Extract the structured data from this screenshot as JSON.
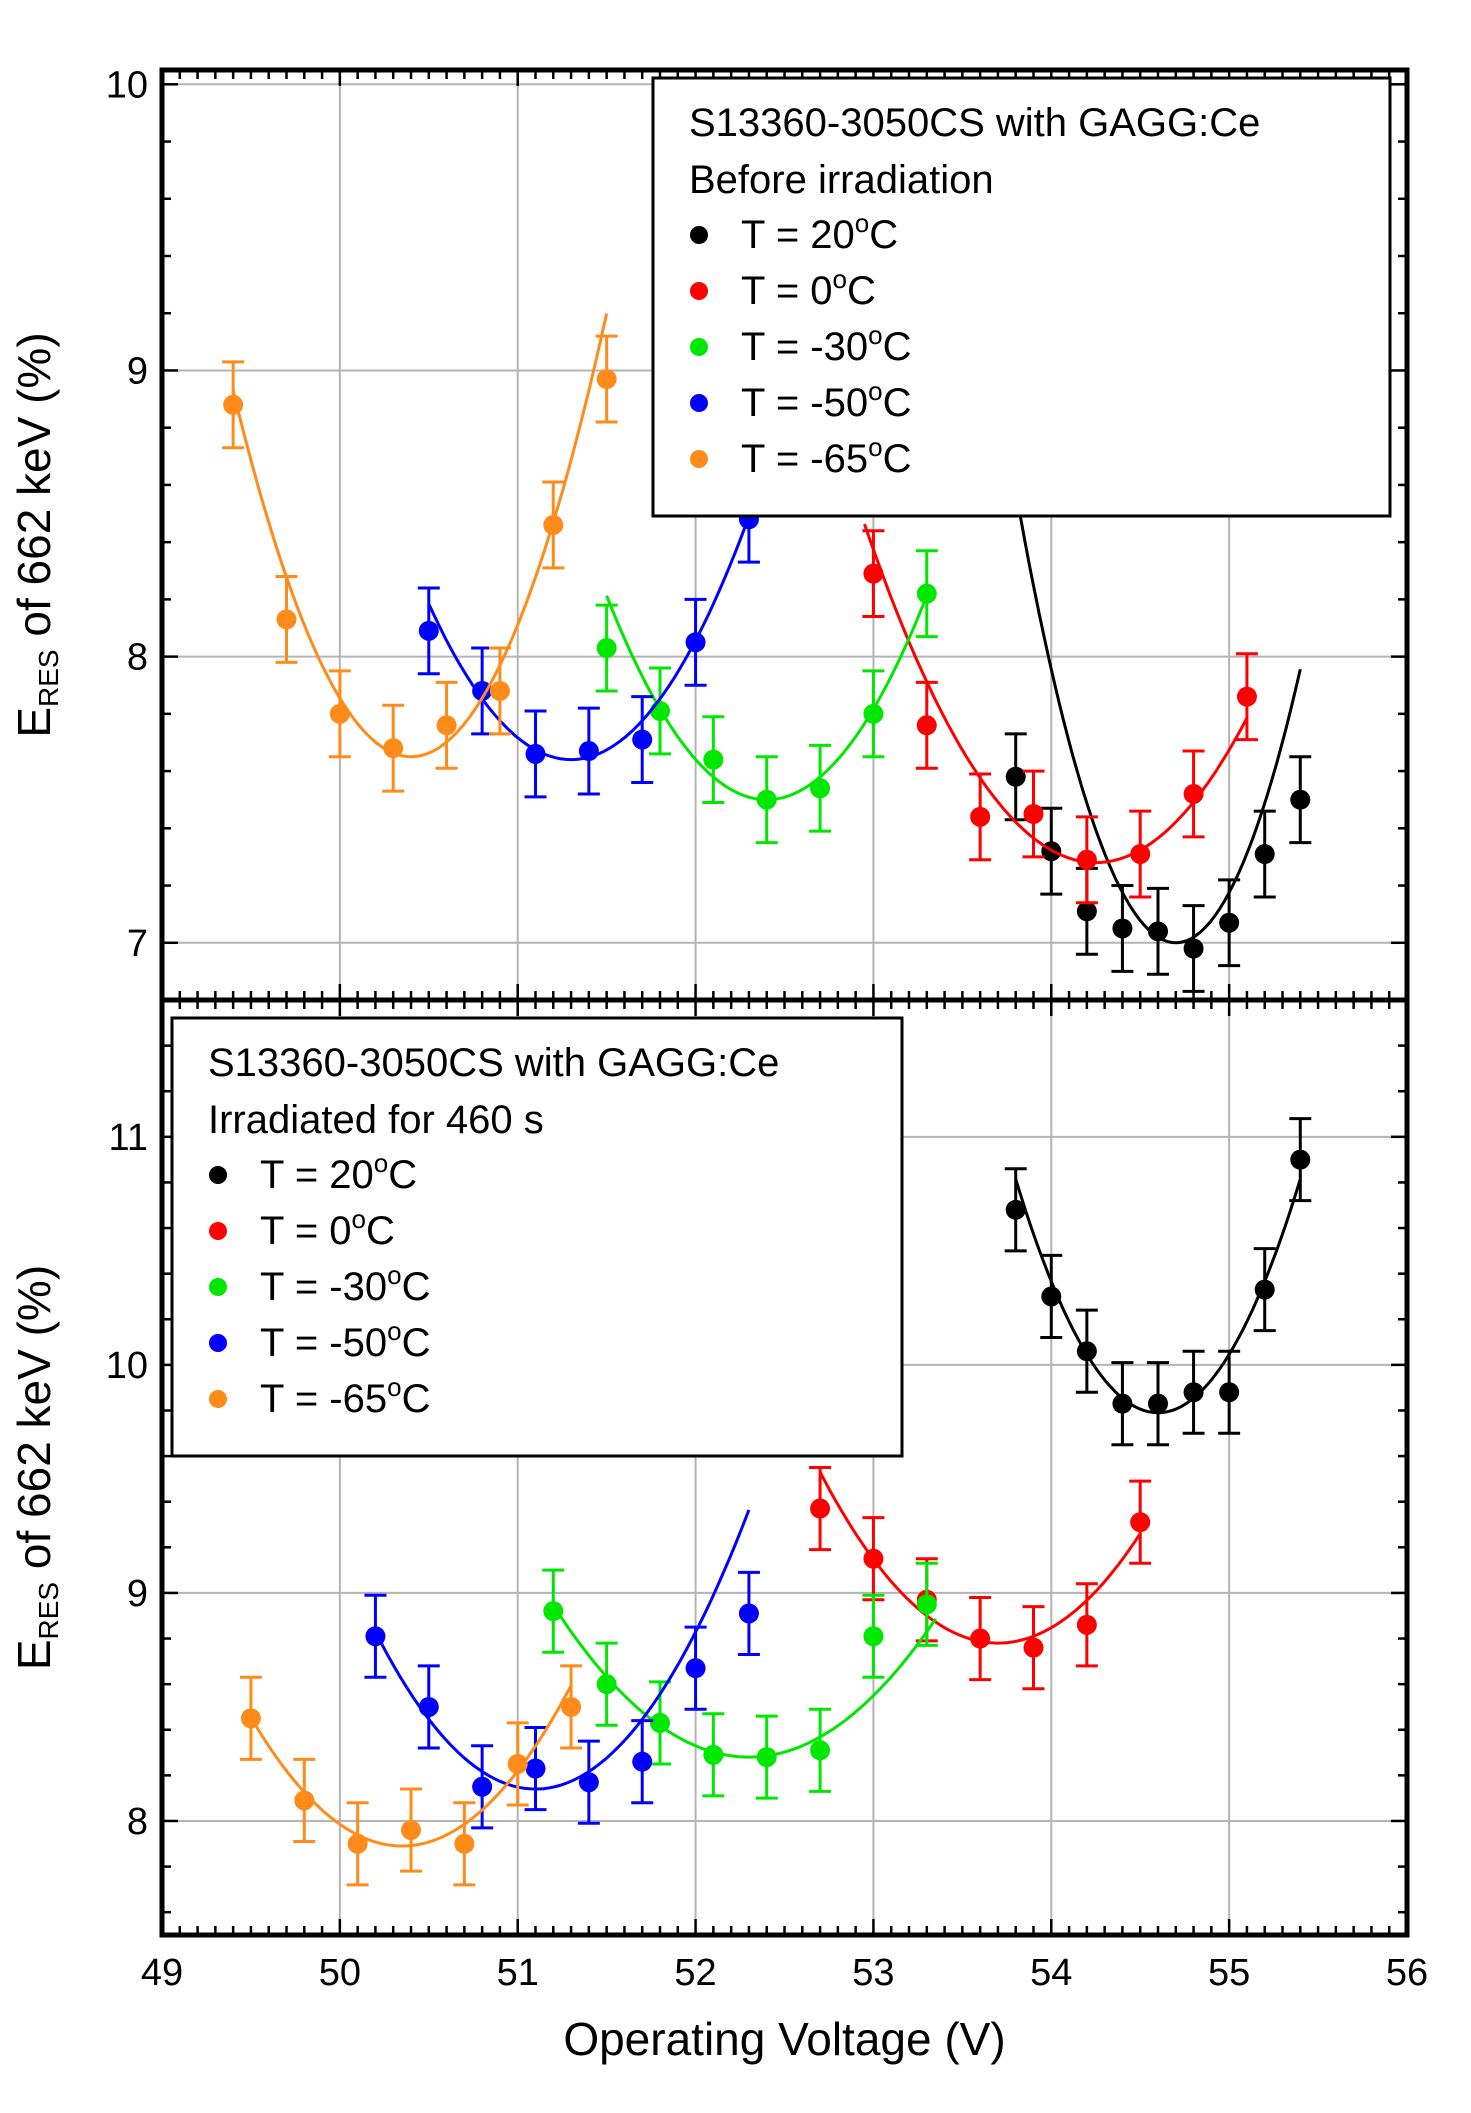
{
  "chart_data": [
    {
      "type": "scatter",
      "panel": "top",
      "title": "",
      "xlabel": "",
      "ylabel": "E",
      "ylabel_sub": "RES",
      "ylabel_rest": " of 662 keV (%)",
      "xlim": [
        49,
        56
      ],
      "ylim": [
        6.8,
        10.05
      ],
      "yticks": [
        "7",
        "8",
        "9",
        "10"
      ],
      "ytick_values": [
        7,
        8,
        9,
        10
      ],
      "grid": true,
      "legend_position": "top-right",
      "legend_title": [
        "S13360-3050CS with GAGG:Ce",
        "Before irradiation"
      ],
      "error_bar": 0.15,
      "series": [
        {
          "name": "T = 20",
          "name_sup": "o",
          "name_tail": "C",
          "color": "#000000",
          "x": [
            53.8,
            54.0,
            54.2,
            54.4,
            54.6,
            54.8,
            55.0,
            55.2,
            55.4
          ],
          "y": [
            7.58,
            7.32,
            7.11,
            7.05,
            7.04,
            6.98,
            7.07,
            7.31,
            7.5
          ],
          "fit": {
            "vertex_x": 54.7,
            "vertex_y": 7.0,
            "a": 1.95,
            "x_range": [
              53.8,
              55.4
            ]
          }
        },
        {
          "name": "T = 0",
          "name_sup": "o",
          "name_tail": "C",
          "color": "#ff0000",
          "x": [
            53.0,
            53.3,
            53.6,
            53.9,
            54.2,
            54.5,
            54.8,
            55.1
          ],
          "y": [
            8.29,
            7.76,
            7.44,
            7.45,
            7.29,
            7.31,
            7.52,
            7.86
          ],
          "fit": {
            "vertex_x": 54.25,
            "vertex_y": 7.28,
            "a": 0.7,
            "x_range": [
              52.95,
              55.1
            ]
          }
        },
        {
          "name": "T = -30",
          "name_sup": "o",
          "name_tail": "C",
          "color": "#00e800",
          "x": [
            51.5,
            51.8,
            52.1,
            52.4,
            52.7,
            53.0,
            53.3
          ],
          "y": [
            8.03,
            7.81,
            7.64,
            7.5,
            7.54,
            7.8,
            8.22
          ],
          "fit": {
            "vertex_x": 52.4,
            "vertex_y": 7.5,
            "a": 0.88,
            "x_range": [
              51.5,
              53.3
            ]
          }
        },
        {
          "name": "T = -50",
          "name_sup": "o",
          "name_tail": "C",
          "color": "#0000ff",
          "x": [
            50.5,
            50.8,
            51.1,
            51.4,
            51.7,
            52.0,
            52.3
          ],
          "y": [
            8.09,
            7.88,
            7.66,
            7.67,
            7.71,
            8.05,
            8.48
          ],
          "fit": {
            "vertex_x": 51.3,
            "vertex_y": 7.64,
            "a": 0.85,
            "x_range": [
              50.5,
              52.35
            ]
          }
        },
        {
          "name": "T = -65",
          "name_sup": "o",
          "name_tail": "C",
          "color": "#ff8c1a",
          "x": [
            49.4,
            49.7,
            50.0,
            50.3,
            50.6,
            50.9,
            51.2,
            51.5
          ],
          "y": [
            8.88,
            8.13,
            7.8,
            7.68,
            7.76,
            7.88,
            8.46,
            8.97
          ],
          "fit": {
            "vertex_x": 50.4,
            "vertex_y": 7.65,
            "a": 1.28,
            "x_range": [
              49.4,
              51.5
            ]
          }
        }
      ]
    },
    {
      "type": "scatter",
      "panel": "bottom",
      "title": "",
      "xlabel": "Operating Voltage (V)",
      "ylabel": "E",
      "ylabel_sub": "RES",
      "ylabel_rest": " of 662 keV (%)",
      "xlim": [
        49,
        56
      ],
      "ylim": [
        7.5,
        11.6
      ],
      "xticks": [
        "49",
        "50",
        "51",
        "52",
        "53",
        "54",
        "55",
        "56"
      ],
      "xtick_values": [
        49,
        50,
        51,
        52,
        53,
        54,
        55,
        56
      ],
      "yticks": [
        "8",
        "9",
        "10",
        "11"
      ],
      "ytick_values": [
        8,
        9,
        10,
        11
      ],
      "grid": true,
      "legend_position": "top-left",
      "legend_title": [
        "S13360-3050CS with GAGG:Ce",
        "Irradiated for 460 s"
      ],
      "error_bar": 0.18,
      "series": [
        {
          "name": "T = 20",
          "name_sup": "o",
          "name_tail": "C",
          "color": "#000000",
          "x": [
            53.8,
            54.0,
            54.2,
            54.4,
            54.6,
            54.8,
            55.0,
            55.2,
            55.4
          ],
          "y": [
            10.68,
            10.3,
            10.06,
            9.83,
            9.83,
            9.88,
            9.88,
            10.33,
            10.9
          ],
          "fit": {
            "vertex_x": 54.6,
            "vertex_y": 9.79,
            "a": 1.6,
            "x_range": [
              53.8,
              55.4
            ]
          }
        },
        {
          "name": "T = 0",
          "name_sup": "o",
          "name_tail": "C",
          "color": "#ff0000",
          "x": [
            52.7,
            53.0,
            53.3,
            53.6,
            53.9,
            54.2,
            54.5
          ],
          "y": [
            9.37,
            9.15,
            8.97,
            8.8,
            8.76,
            8.86,
            9.31
          ],
          "fit": {
            "vertex_x": 53.7,
            "vertex_y": 8.78,
            "a": 0.75,
            "x_range": [
              52.7,
              54.5
            ]
          }
        },
        {
          "name": "T = -30",
          "name_sup": "o",
          "name_tail": "C",
          "color": "#00e800",
          "x": [
            51.2,
            51.5,
            51.8,
            52.1,
            52.4,
            52.7,
            53.0,
            53.3
          ],
          "y": [
            8.92,
            8.6,
            8.43,
            8.29,
            8.28,
            8.31,
            8.81,
            8.95
          ],
          "fit": {
            "vertex_x": 52.3,
            "vertex_y": 8.28,
            "a": 0.55,
            "x_range": [
              51.2,
              53.35
            ]
          }
        },
        {
          "name": "T = -50",
          "name_sup": "o",
          "name_tail": "C",
          "color": "#0000ff",
          "x": [
            50.2,
            50.5,
            50.8,
            51.1,
            51.4,
            51.7,
            52.0,
            52.3
          ],
          "y": [
            8.81,
            8.5,
            8.15,
            8.23,
            8.17,
            8.26,
            8.67,
            8.91
          ],
          "fit": {
            "vertex_x": 51.1,
            "vertex_y": 8.14,
            "a": 0.85,
            "x_range": [
              50.2,
              52.3
            ]
          }
        },
        {
          "name": "T = -65",
          "name_sup": "o",
          "name_tail": "C",
          "color": "#ff8c1a",
          "x": [
            49.5,
            49.8,
            50.1,
            50.4,
            50.7,
            51.0,
            51.3
          ],
          "y": [
            8.45,
            8.09,
            7.9,
            7.96,
            7.9,
            8.25,
            8.5
          ],
          "fit": {
            "vertex_x": 50.35,
            "vertex_y": 7.89,
            "a": 0.78,
            "x_range": [
              49.5,
              51.3
            ]
          }
        }
      ]
    }
  ]
}
